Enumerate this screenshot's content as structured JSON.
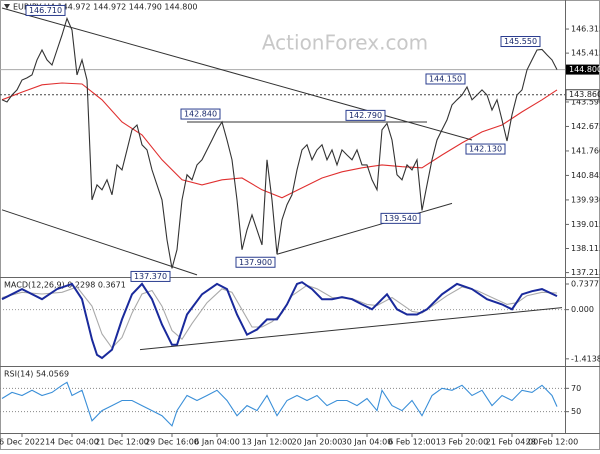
{
  "chart_data": [
    {
      "type": "line",
      "title": "EURJPY,H4  144.972 144.972 144.790 144.800",
      "watermark": "ActionForex.com",
      "xlim": [
        0,
        112
      ],
      "xticks": [
        {
          "value": 4,
          "label": "6 Dec 2022"
        },
        {
          "value": 14,
          "label": "14 Dec 04:00"
        },
        {
          "value": 24,
          "label": "21 Dec 12:00"
        },
        {
          "value": 34,
          "label": "29 Dec 16:00"
        },
        {
          "value": 43,
          "label": "6 Jan 04:00"
        },
        {
          "value": 53,
          "label": "13 Jan 12:00"
        },
        {
          "value": 63,
          "label": "20 Jan 20:00"
        },
        {
          "value": 73,
          "label": "30 Jan 04:00"
        },
        {
          "value": 82,
          "label": "6 Feb 12:00"
        },
        {
          "value": 92,
          "label": "13 Feb 20:00"
        },
        {
          "value": 102,
          "label": "21 Feb 04:00"
        },
        {
          "value": 110,
          "label": "28 Feb 12:00"
        }
      ],
      "ylim": [
        137.05,
        147.4
      ],
      "yticks": [
        146.315,
        145.415,
        {
          "value": 143.59,
          "label": "143.590"
        },
        142.675,
        {
          "value": 141.76,
          "label": "141.760"
        },
        140.845,
        {
          "value": 139.93,
          "label": "139.930"
        },
        139.015,
        138.115,
        137.215
      ],
      "price_line": {
        "value": 144.8,
        "label": "144.800"
      },
      "level_line": {
        "value": 143.86,
        "label": "143.860"
      },
      "series": [
        {
          "color": "#333333",
          "x": [
            0,
            1,
            2,
            3,
            4,
            5,
            6,
            7,
            8,
            9,
            10,
            11,
            12,
            13,
            14,
            15,
            16,
            17,
            18,
            19,
            20,
            21,
            22,
            23,
            24,
            25,
            26,
            27,
            28,
            29,
            30,
            31,
            32,
            33,
            34,
            35,
            36,
            37,
            38,
            39,
            40,
            41,
            42,
            43,
            44,
            45,
            46,
            47,
            48,
            49,
            50,
            51,
            52,
            53,
            54,
            55,
            56,
            57,
            58,
            59,
            60,
            61,
            62,
            63,
            64,
            65,
            66,
            67,
            68,
            69,
            70,
            71,
            72,
            73,
            74,
            75,
            76,
            77,
            78,
            79,
            80,
            81,
            82,
            83,
            84,
            85,
            86,
            87,
            88,
            89,
            90,
            91,
            92,
            93,
            94,
            95,
            96,
            97,
            98,
            99,
            100,
            101,
            102,
            103,
            104,
            105,
            106,
            107,
            108,
            109,
            110,
            111
          ],
          "values": [
            143.67,
            143.59,
            143.85,
            144.04,
            144.41,
            144.49,
            144.6,
            145.16,
            145.53,
            145.16,
            144.97,
            145.53,
            146.09,
            146.71,
            146.28,
            144.6,
            145.16,
            144.41,
            139.93,
            140.49,
            140.31,
            140.68,
            140.12,
            141.24,
            141.05,
            141.8,
            142.55,
            142.73,
            141.99,
            141.8,
            141.05,
            140.49,
            139.93,
            138.44,
            137.37,
            138.07,
            139.93,
            140.87,
            140.68,
            141.24,
            141.43,
            141.8,
            142.17,
            142.55,
            142.84,
            142.17,
            141.43,
            139.93,
            138.07,
            138.81,
            139.37,
            138.81,
            138.25,
            141.43,
            139.93,
            137.9,
            139.19,
            139.75,
            140.12,
            141.05,
            141.8,
            141.99,
            141.43,
            141.8,
            141.99,
            141.43,
            141.8,
            141.24,
            141.8,
            141.61,
            141.43,
            141.8,
            141.24,
            141.24,
            140.68,
            140.31,
            142.55,
            142.79,
            142.17,
            140.87,
            140.68,
            141.24,
            141.05,
            141.43,
            139.54,
            140.49,
            141.43,
            142.17,
            142.55,
            142.92,
            143.48,
            143.67,
            143.85,
            144.15,
            143.67,
            143.85,
            144.04,
            143.85,
            143.29,
            143.67,
            142.92,
            142.13,
            143.11,
            143.85,
            144.04,
            144.79,
            145.16,
            145.53,
            145.55,
            145.35,
            145.16,
            144.8
          ]
        },
        {
          "color": "#e03030",
          "x": [
            0,
            4,
            8,
            12,
            16,
            20,
            24,
            28,
            32,
            36,
            40,
            44,
            48,
            52,
            56,
            60,
            64,
            68,
            72,
            76,
            80,
            84,
            88,
            92,
            96,
            100,
            104,
            108,
            111
          ],
          "values": [
            143.67,
            143.96,
            144.23,
            144.3,
            144.26,
            143.67,
            142.84,
            142.36,
            141.43,
            140.68,
            140.49,
            140.68,
            140.75,
            140.31,
            140.01,
            140.38,
            140.75,
            140.98,
            141.13,
            141.24,
            141.17,
            141.13,
            141.61,
            142.06,
            142.47,
            142.73,
            143.22,
            143.67,
            144.04
          ]
        }
      ],
      "highs": [
        {
          "x": 13,
          "value": 146.71,
          "label": "146.710"
        },
        {
          "x": 44,
          "value": 142.84,
          "label": "142.840"
        },
        {
          "x": 77,
          "value": 142.79,
          "label": "142.790"
        },
        {
          "x": 93,
          "value": 144.15,
          "label": "144.150"
        },
        {
          "x": 108,
          "value": 145.55,
          "label": "145.550"
        }
      ],
      "lows": [
        {
          "x": 34,
          "value": 137.37,
          "label": "137.370"
        },
        {
          "x": 55,
          "value": 137.9,
          "label": "137.900"
        },
        {
          "x": 84,
          "value": 139.54,
          "label": "139.540"
        },
        {
          "x": 101,
          "value": 142.13,
          "label": "142.130"
        }
      ],
      "trendlines": [
        {
          "from": [
            0,
            147.1
          ],
          "to": [
            94,
            142.17
          ]
        },
        {
          "from": [
            0,
            139.56
          ],
          "to": [
            39,
            137.13
          ]
        },
        {
          "from": [
            37,
            142.84
          ],
          "to": [
            85,
            142.84
          ]
        },
        {
          "from": [
            55,
            137.9
          ],
          "to": [
            90,
            139.8
          ]
        }
      ],
      "trendline_color": "#333333"
    },
    {
      "type": "line",
      "title": "MACD(12,26,9) 0.2298 0.3671",
      "ylim": [
        -1.62,
        0.91
      ],
      "yticks": [
        0.7377,
        {
          "value": 0,
          "label": "0.000"
        },
        -1.4138
      ],
      "series": [
        {
          "color": "#1a2a9c",
          "x": [
            0,
            4,
            8,
            11,
            14,
            16,
            18,
            19,
            20,
            22,
            24,
            26,
            28,
            30,
            32,
            34,
            35,
            37,
            40,
            43,
            45,
            47,
            49,
            51,
            53,
            55,
            57,
            59,
            60,
            62,
            64,
            66,
            68,
            70,
            72,
            74,
            76,
            77,
            79,
            81,
            83,
            85,
            88,
            91,
            94,
            97,
            100,
            102,
            104,
            106,
            108,
            111
          ],
          "values": [
            0.3,
            0.59,
            0.3,
            0.59,
            0.74,
            0.3,
            -0.86,
            -1.3,
            -1.39,
            -1.15,
            -0.28,
            0.44,
            0.74,
            0.3,
            -0.43,
            -1.01,
            -1.01,
            -0.14,
            0.44,
            0.74,
            0.59,
            -0.14,
            -0.72,
            -0.57,
            -0.28,
            -0.28,
            0.15,
            0.74,
            0.79,
            0.59,
            0.3,
            0.3,
            0.36,
            0.3,
            0.15,
            0.01,
            0.3,
            0.44,
            0.01,
            -0.14,
            -0.14,
            0.01,
            0.44,
            0.74,
            0.59,
            0.3,
            0.15,
            0.01,
            0.44,
            0.53,
            0.59,
            0.39
          ]
        },
        {
          "color": "#aaaaaa",
          "x": [
            0,
            4,
            8,
            12,
            15,
            18,
            20,
            22,
            24,
            26,
            28,
            30,
            32,
            34,
            36,
            38,
            41,
            44,
            46,
            48,
            50,
            52,
            54,
            56,
            58,
            61,
            63,
            66,
            70,
            73,
            75,
            78,
            80,
            82,
            84,
            86,
            89,
            92,
            95,
            98,
            101,
            103,
            105,
            108,
            111
          ],
          "values": [
            0.35,
            0.5,
            0.45,
            0.5,
            0.65,
            0.1,
            -0.7,
            -1.1,
            -0.8,
            -0.1,
            0.45,
            0.55,
            0.1,
            -0.6,
            -0.85,
            -0.4,
            0.2,
            0.6,
            0.5,
            0.0,
            -0.5,
            -0.5,
            -0.35,
            -0.1,
            0.4,
            0.7,
            0.6,
            0.35,
            0.32,
            0.15,
            0.12,
            0.35,
            0.15,
            -0.05,
            -0.1,
            0.1,
            0.4,
            0.65,
            0.55,
            0.35,
            0.15,
            0.2,
            0.4,
            0.5,
            0.48
          ]
        }
      ],
      "trendlines": [
        {
          "from": [
            27.6,
            -1.15
          ],
          "to": [
            112,
            0.06
          ]
        }
      ],
      "trendline_color": "#333333"
    },
    {
      "type": "line",
      "title": "RSI(14) 54.0569",
      "ylim": [
        31.7,
        88.3
      ],
      "yticks": [
        70,
        50
      ],
      "grid": "dotted",
      "series": [
        {
          "color": "#3a8fd8",
          "x": [
            0,
            2,
            4,
            6,
            8,
            10,
            12,
            13,
            14,
            16,
            18,
            20,
            22,
            24,
            26,
            28,
            30,
            32,
            34,
            35,
            37,
            39,
            41,
            43,
            45,
            47,
            49,
            51,
            53,
            55,
            57,
            59,
            61,
            63,
            65,
            67,
            69,
            71,
            73,
            75,
            76,
            78,
            80,
            82,
            84,
            86,
            88,
            90,
            92,
            94,
            96,
            98,
            100,
            102,
            104,
            106,
            108,
            110,
            111
          ],
          "values": [
            61.3,
            66.5,
            63.9,
            68.3,
            63.9,
            66.5,
            72.6,
            75.2,
            63.9,
            68.3,
            42.2,
            50.9,
            55.2,
            59.6,
            59.6,
            55.2,
            50.9,
            46.5,
            37.8,
            50.9,
            63.9,
            59.6,
            63.9,
            68.3,
            59.6,
            46.5,
            55.2,
            50.9,
            63.9,
            46.5,
            59.6,
            63.9,
            59.6,
            63.9,
            55.2,
            59.6,
            59.6,
            55.2,
            61.3,
            50.9,
            68.3,
            55.2,
            50.9,
            59.6,
            46.5,
            63.9,
            70.0,
            68.3,
            72.6,
            63.9,
            68.3,
            55.2,
            63.9,
            59.6,
            68.3,
            66.5,
            72.6,
            63.9,
            54.3
          ]
        }
      ]
    }
  ]
}
